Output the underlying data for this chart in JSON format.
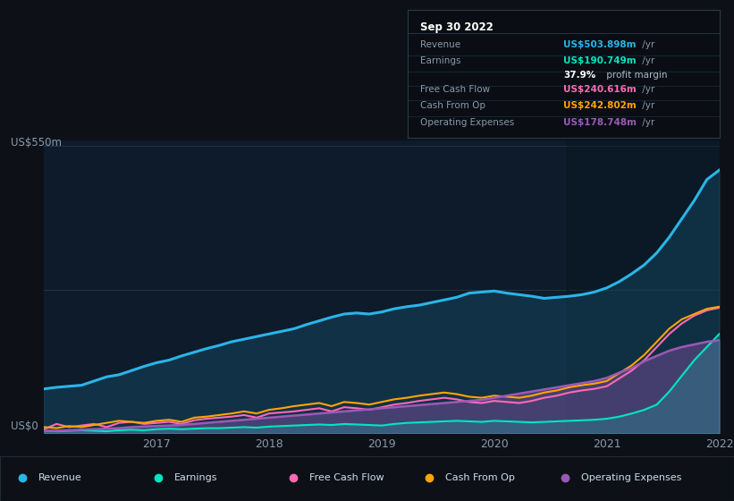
{
  "background_color": "#0d1117",
  "chart_bg_color": "#0d1b2a",
  "ylabel_top": "US$550m",
  "ylabel_bottom": "US$0",
  "x_ticks": [
    "2017",
    "2018",
    "2019",
    "2020",
    "2021",
    "2022"
  ],
  "colors": {
    "revenue": "#29b5e8",
    "earnings": "#00e5c0",
    "free_cash_flow": "#ff69b4",
    "cash_from_op": "#ffa500",
    "operating_expenses": "#9b59b6"
  },
  "tooltip": {
    "date": "Sep 30 2022",
    "revenue_label": "Revenue",
    "revenue_value": "US$503.898m",
    "earnings_label": "Earnings",
    "earnings_value": "US$190.749m",
    "profit_margin": "37.9%",
    "profit_margin_text": " profit margin",
    "fcf_label": "Free Cash Flow",
    "fcf_value": "US$240.616m",
    "cfop_label": "Cash From Op",
    "cfop_value": "US$242.802m",
    "opex_label": "Operating Expenses",
    "opex_value": "US$178.748m"
  },
  "revenue": [
    85,
    88,
    90,
    92,
    100,
    108,
    112,
    120,
    128,
    135,
    140,
    148,
    155,
    162,
    168,
    175,
    180,
    185,
    190,
    195,
    200,
    208,
    215,
    222,
    228,
    230,
    228,
    232,
    238,
    242,
    245,
    250,
    255,
    260,
    268,
    270,
    272,
    268,
    265,
    262,
    258,
    260,
    262,
    265,
    270,
    278,
    290,
    305,
    322,
    345,
    375,
    410,
    445,
    485,
    503
  ],
  "earnings": [
    5,
    4,
    5,
    6,
    5,
    4,
    6,
    7,
    6,
    8,
    9,
    8,
    9,
    10,
    10,
    11,
    12,
    11,
    13,
    14,
    15,
    16,
    17,
    16,
    18,
    17,
    16,
    15,
    18,
    20,
    21,
    22,
    23,
    24,
    23,
    22,
    24,
    23,
    22,
    21,
    22,
    23,
    24,
    25,
    26,
    28,
    32,
    38,
    45,
    55,
    80,
    110,
    140,
    165,
    190
  ],
  "free_cash_flow": [
    8,
    18,
    12,
    15,
    18,
    12,
    20,
    22,
    18,
    20,
    22,
    18,
    25,
    28,
    30,
    32,
    35,
    30,
    38,
    40,
    42,
    45,
    48,
    42,
    50,
    48,
    45,
    50,
    55,
    58,
    62,
    65,
    68,
    65,
    60,
    58,
    62,
    60,
    58,
    62,
    68,
    72,
    78,
    82,
    85,
    90,
    105,
    120,
    140,
    165,
    190,
    210,
    225,
    235,
    240
  ],
  "cash_from_op": [
    12,
    10,
    14,
    12,
    16,
    20,
    24,
    22,
    20,
    24,
    26,
    22,
    30,
    32,
    35,
    38,
    42,
    38,
    45,
    48,
    52,
    55,
    58,
    52,
    60,
    58,
    55,
    60,
    65,
    68,
    72,
    75,
    78,
    75,
    70,
    68,
    72,
    70,
    68,
    72,
    78,
    82,
    88,
    92,
    95,
    100,
    115,
    130,
    150,
    175,
    200,
    218,
    228,
    238,
    242
  ],
  "operating_expenses": [
    5,
    5,
    6,
    7,
    8,
    9,
    10,
    12,
    13,
    14,
    15,
    16,
    18,
    20,
    22,
    24,
    26,
    28,
    30,
    32,
    34,
    36,
    38,
    40,
    42,
    44,
    46,
    48,
    50,
    52,
    54,
    56,
    58,
    60,
    62,
    64,
    68,
    72,
    76,
    80,
    84,
    88,
    92,
    96,
    100,
    106,
    116,
    125,
    138,
    148,
    158,
    165,
    170,
    175,
    178
  ]
}
